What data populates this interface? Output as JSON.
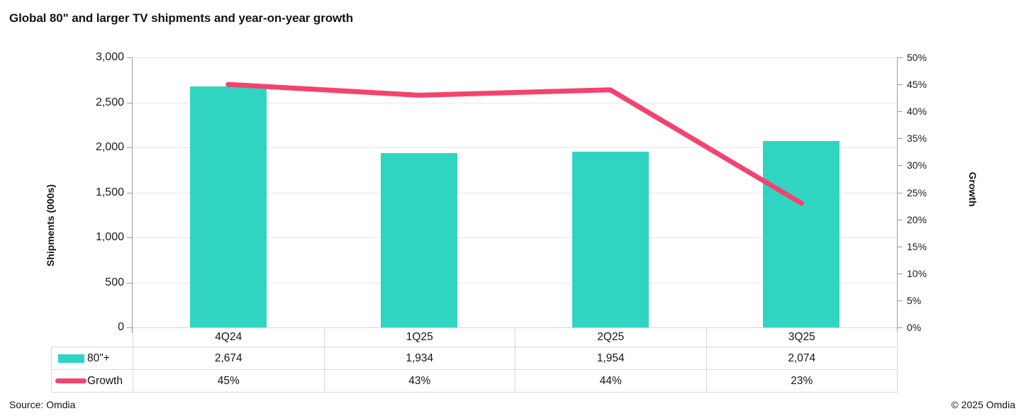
{
  "chart_data": {
    "type": "bar",
    "title": "Global 80\" and larger TV shipments and year-on-year growth",
    "categories": [
      "4Q24",
      "1Q25",
      "2Q25",
      "3Q25"
    ],
    "series": [
      {
        "name": "80\"+",
        "type": "bar",
        "axis": "left",
        "values": [
          2674,
          1934,
          1954,
          2074
        ],
        "labels": [
          "2,674",
          "1,934",
          "1,954",
          "2,074"
        ]
      },
      {
        "name": "Growth",
        "type": "line",
        "axis": "right",
        "values": [
          45,
          43,
          44,
          23
        ],
        "labels": [
          "45%",
          "43%",
          "44%",
          "23%"
        ]
      }
    ],
    "y_left": {
      "title": "Shipments (000s)",
      "min": 0,
      "max": 3000,
      "tick_step": 500,
      "ticks": [
        "0",
        "500",
        "1,000",
        "1,500",
        "2,000",
        "2,500",
        "3,000"
      ]
    },
    "y_right": {
      "title": "Growth",
      "min": 0,
      "max": 50,
      "tick_step": 5,
      "ticks": [
        "0%",
        "5%",
        "10%",
        "15%",
        "20%",
        "25%",
        "30%",
        "35%",
        "40%",
        "45%",
        "50%"
      ]
    },
    "grid": true,
    "legend_position": "table-left-column",
    "colors": {
      "bar": "#30d5c2",
      "line": "#f4436f",
      "gridline": "#e7e7e7",
      "axis": "#9d9d9d",
      "table_border": "#d9d9d9",
      "text": "#141414"
    }
  },
  "footer": {
    "source": "Source: Omdia",
    "copyright": "© 2025 Omdia"
  }
}
